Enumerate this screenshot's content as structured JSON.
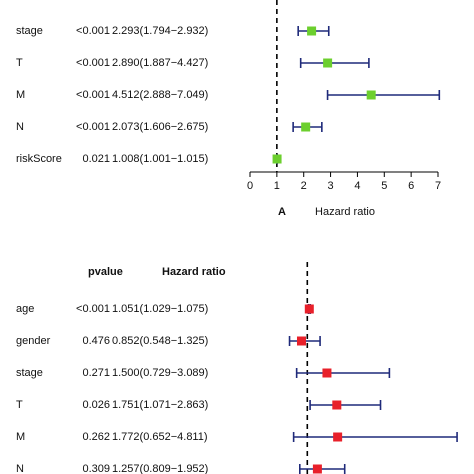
{
  "chart_data": [
    {
      "type": "forest",
      "panel_label": "A",
      "x_label": "Hazard ratio",
      "categories": [
        "stage",
        "T",
        "M",
        "N",
        "riskScore"
      ],
      "pvalues": [
        "<0.001",
        "<0.001",
        "<0.001",
        "<0.001",
        "0.021"
      ],
      "values": [
        2.293,
        2.89,
        4.512,
        2.073,
        1.008
      ],
      "value_labels": [
        "2.293(1.794−2.932)",
        "2.890(1.887−4.427)",
        "4.512(2.888−7.049)",
        "2.073(1.606−2.675)",
        "1.008(1.001−1.015)"
      ],
      "lower": [
        1.794,
        1.887,
        2.888,
        1.606,
        1.001
      ],
      "upper": [
        2.932,
        4.427,
        7.049,
        2.675,
        1.015
      ],
      "reference": 1,
      "xlim": [
        0,
        7
      ],
      "xticks": [
        0,
        1,
        2,
        3,
        4,
        5,
        6,
        7
      ],
      "marker_color": "#6ccf2e",
      "bar_color": "#1f2a7a"
    },
    {
      "type": "forest",
      "column_headers": [
        "pvalue",
        "Hazard ratio"
      ],
      "categories": [
        "age",
        "gender",
        "stage",
        "T",
        "M",
        "N"
      ],
      "pvalues": [
        "<0.001",
        "0.476",
        "0.271",
        "0.026",
        "0.262",
        "0.309"
      ],
      "values": [
        1.051,
        0.852,
        1.5,
        1.751,
        1.772,
        1.257
      ],
      "value_labels": [
        "1.051(1.029−1.075)",
        "0.852(0.548−1.325)",
        "1.500(0.729−3.089)",
        "1.751(1.071−2.863)",
        "1.772(0.652−4.811)",
        "1.257(0.809−1.952)"
      ],
      "lower": [
        1.029,
        0.548,
        0.729,
        1.071,
        0.652,
        0.809
      ],
      "upper": [
        1.075,
        1.325,
        3.089,
        2.863,
        4.811,
        1.952
      ],
      "reference": 1,
      "xlim": [
        0,
        5
      ],
      "marker_color": "#e8202a",
      "bar_color": "#1f2a7a"
    }
  ]
}
